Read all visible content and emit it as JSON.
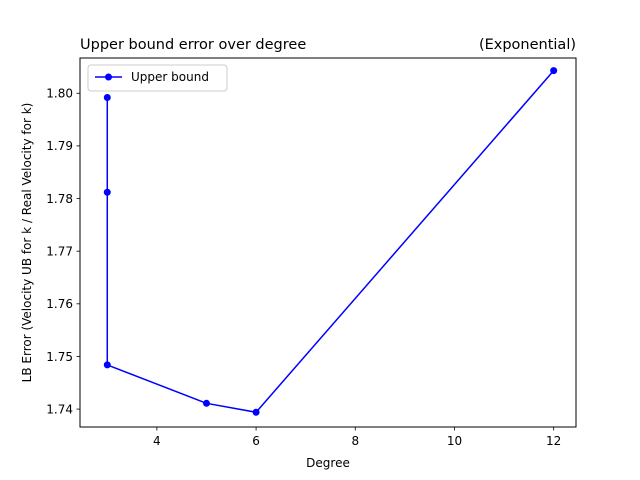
{
  "chart_data": {
    "type": "line",
    "title": "Upper bound error over degree",
    "title_right": "(Exponential)",
    "xlabel": "Degree",
    "ylabel": "LB Error (Velocity UB for k / Real Velocity for k)",
    "xlim": [
      2.45,
      12.45
    ],
    "ylim": [
      1.7366,
      1.8067
    ],
    "xticks": [
      4,
      6,
      8,
      10,
      12
    ],
    "xtick_labels": [
      "4",
      "6",
      "8",
      "10",
      "12"
    ],
    "yticks": [
      1.74,
      1.75,
      1.76,
      1.77,
      1.78,
      1.79,
      1.8
    ],
    "ytick_labels": [
      "1.74",
      "1.75",
      "1.76",
      "1.77",
      "1.78",
      "1.79",
      "1.80"
    ],
    "grid": false,
    "legend_position": "top-left",
    "series": [
      {
        "name": "Upper bound",
        "color": "#0000ff",
        "marker": "circle",
        "x": [
          3,
          3,
          3,
          5,
          6,
          12
        ],
        "y": [
          1.7992,
          1.7812,
          1.7484,
          1.7411,
          1.7394,
          1.8043
        ]
      }
    ]
  }
}
